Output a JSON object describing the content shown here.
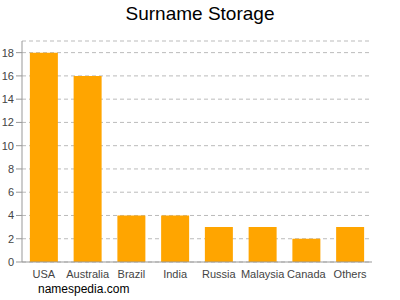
{
  "chart_data": {
    "type": "bar",
    "title": "Surname Storage",
    "categories": [
      "USA",
      "Australia",
      "Brazil",
      "India",
      "Russia",
      "Malaysia",
      "Canada",
      "Others"
    ],
    "values": [
      18,
      16,
      4,
      4,
      3,
      3,
      2,
      3
    ],
    "color": "#ffa500",
    "ylim": [
      0,
      19
    ],
    "yticks": [
      0,
      2,
      4,
      6,
      8,
      10,
      12,
      14,
      16,
      18
    ],
    "grid": true,
    "annotations": [
      "namespedia.com"
    ]
  }
}
